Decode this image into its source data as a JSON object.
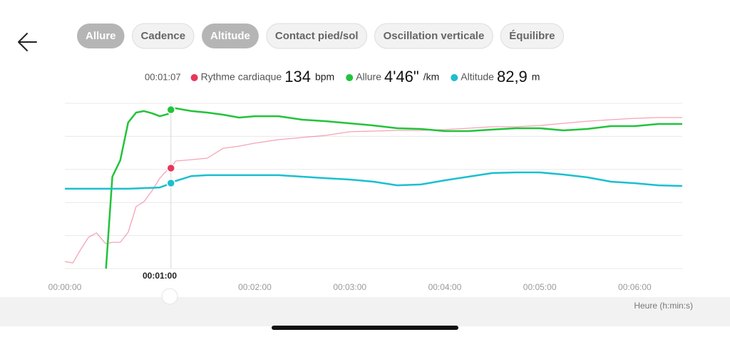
{
  "tabs": [
    {
      "label": "Allure",
      "selected": true
    },
    {
      "label": "Cadence",
      "selected": false
    },
    {
      "label": "Altitude",
      "selected": true
    },
    {
      "label": "Contact pied/sol",
      "selected": false
    },
    {
      "label": "Oscillation verticale",
      "selected": false
    },
    {
      "label": "Équilibre",
      "selected": false
    }
  ],
  "readout": {
    "time": "00:01:07",
    "items": [
      {
        "name": "Rythme cardiaque",
        "value": "134",
        "unit": "bpm"
      },
      {
        "name": "Allure",
        "value": "4'46\"",
        "unit": "/km"
      },
      {
        "name": "Altitude",
        "value": "82,9",
        "unit": "m"
      }
    ]
  },
  "chart_data": {
    "type": "line",
    "x_label": "Heure (h:min:s)",
    "cursor_label": "00:01:00",
    "cursor_x": 67,
    "x": [
      0,
      5,
      10,
      15,
      20,
      25,
      26,
      30,
      35,
      40,
      45,
      50,
      55,
      60,
      65,
      67,
      70,
      80,
      90,
      100,
      110,
      120,
      135,
      150,
      165,
      180,
      195,
      210,
      225,
      240,
      255,
      270,
      285,
      300,
      315,
      330,
      345,
      360,
      375,
      390
    ],
    "xlim": [
      0,
      390
    ],
    "xticks": [
      {
        "value": 0,
        "label": "00:00:00"
      },
      {
        "value": 120,
        "label": "00:02:00"
      },
      {
        "value": 180,
        "label": "00:03:00"
      },
      {
        "value": 240,
        "label": "00:04:00"
      },
      {
        "value": 300,
        "label": "00:05:00"
      },
      {
        "value": 360,
        "label": "00:06:00"
      }
    ],
    "ylim": [
      0,
      100
    ],
    "yticks": [
      0,
      20,
      40,
      60,
      80,
      100
    ],
    "grid": true,
    "series": [
      {
        "name": "Rythme cardiaque",
        "color": "#e8365a",
        "opacity": 0.45,
        "width": 1.3,
        "values": [
          4.3,
          3.4,
          11.6,
          19,
          21.6,
          15.9,
          15.1,
          15.9,
          15.9,
          22,
          37.5,
          40.5,
          47,
          54.7,
          59.9,
          60.8,
          65.1,
          65.9,
          66.8,
          72.8,
          74.1,
          75.9,
          78,
          79.3,
          80.6,
          82.8,
          83.2,
          83.6,
          83.6,
          84.1,
          84.9,
          85.8,
          85.8,
          86.6,
          87.9,
          89.2,
          90.1,
          90.9,
          91.4,
          91.4
        ]
      },
      {
        "name": "Allure",
        "color": "#22c33a",
        "opacity": 1,
        "width": 2.5,
        "values": [
          null,
          null,
          null,
          null,
          null,
          null,
          0,
          55.6,
          65.5,
          88.4,
          94.4,
          95.3,
          94,
          92.2,
          93.5,
          96.1,
          97,
          95.3,
          94.4,
          93.1,
          91.4,
          92.2,
          92.2,
          90.1,
          89.2,
          87.9,
          86.6,
          84.9,
          84.5,
          83.2,
          83.2,
          84.1,
          84.9,
          84.9,
          83.6,
          84.5,
          86.2,
          86.2,
          87.5,
          87.5
        ]
      },
      {
        "name": "Altitude",
        "color": "#1bbfcf",
        "opacity": 1,
        "width": 2.5,
        "values": [
          48.3,
          48.3,
          48.3,
          48.3,
          48.3,
          48.3,
          48.3,
          48.3,
          48.3,
          48.3,
          48.5,
          48.7,
          48.9,
          49.1,
          50.8,
          51.7,
          53,
          56,
          56.5,
          56.5,
          56.5,
          56.5,
          56.5,
          55.6,
          54.7,
          53.9,
          52.6,
          50.4,
          50.9,
          53.4,
          55.6,
          57.8,
          58.2,
          58.2,
          56.9,
          55.2,
          52.6,
          51.7,
          50.4,
          50
        ]
      }
    ]
  }
}
